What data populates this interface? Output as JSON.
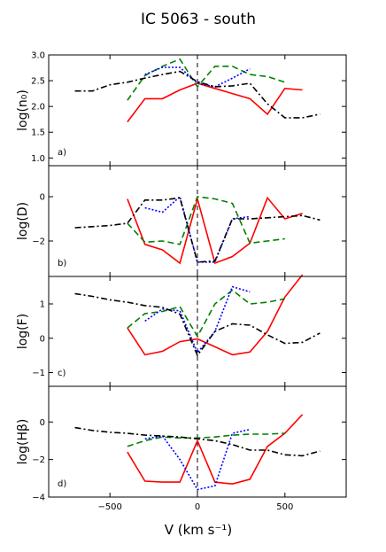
{
  "chart_data": {
    "type": "line",
    "title": "IC 5063 - south",
    "xlabel": "V (km s⁻¹)",
    "xlim": [
      -850,
      850
    ],
    "x_ticks": [
      -500,
      0,
      500
    ],
    "x_tick_labels": [
      "−500",
      "0",
      "500"
    ],
    "zero_line": {
      "x": 0,
      "style": "dashed"
    },
    "series_styles": [
      {
        "key": "red",
        "color": "#ff0000",
        "dash": "solid"
      },
      {
        "key": "green",
        "color": "#008000",
        "dash": "dashed"
      },
      {
        "key": "blue",
        "color": "#0000ff",
        "dash": "dotted"
      },
      {
        "key": "black",
        "color": "#000000",
        "dash": "dashdot"
      }
    ],
    "panels": [
      {
        "label": "a)",
        "ylabel": "log(n₀)",
        "ylim": [
          0.85,
          3.0
        ],
        "y_ticks": [
          1.0,
          1.5,
          2.0,
          2.5,
          3.0
        ],
        "y_tick_labels": [
          "1.0",
          "1.5",
          "2.0",
          "2.5",
          "3.0"
        ],
        "series": [
          {
            "color": "red",
            "x": [
              -400,
              -300,
              -200,
              -100,
              0,
              100,
              200,
              300,
              400,
              500,
              600
            ],
            "y": [
              1.7,
              2.15,
              2.15,
              2.32,
              2.45,
              2.35,
              2.25,
              2.15,
              1.85,
              2.35,
              2.32
            ]
          },
          {
            "color": "green",
            "x": [
              -400,
              -300,
              -200,
              -100,
              0,
              100,
              200,
              300,
              400,
              500
            ],
            "y": [
              2.12,
              2.6,
              2.78,
              2.92,
              2.38,
              2.78,
              2.78,
              2.62,
              2.58,
              2.47
            ]
          },
          {
            "color": "blue",
            "x": [
              -300,
              -200,
              -100,
              0,
              100,
              200,
              300
            ],
            "y": [
              2.62,
              2.76,
              2.76,
              2.45,
              2.38,
              2.55,
              2.73
            ]
          },
          {
            "color": "black",
            "x": [
              -700,
              -600,
              -500,
              -400,
              -300,
              -200,
              -100,
              0,
              100,
              200,
              300,
              400,
              500,
              600,
              700
            ],
            "y": [
              2.3,
              2.3,
              2.42,
              2.47,
              2.55,
              2.62,
              2.68,
              2.48,
              2.38,
              2.4,
              2.45,
              2.05,
              1.78,
              1.78,
              1.85
            ]
          }
        ]
      },
      {
        "label": "b)",
        "ylabel": "log(D)",
        "ylim": [
          -3.6,
          1.4
        ],
        "y_ticks": [
          -2,
          0
        ],
        "y_tick_labels": [
          "−2",
          "0"
        ],
        "series": [
          {
            "color": "red",
            "x": [
              -400,
              -300,
              -200,
              -100,
              0,
              100,
              200,
              300,
              400,
              500,
              600
            ],
            "y": [
              -0.1,
              -2.15,
              -2.4,
              -3.0,
              -0.1,
              -3.0,
              -2.7,
              -2.1,
              -0.05,
              -1.0,
              -0.75
            ]
          },
          {
            "color": "green",
            "x": [
              -400,
              -300,
              -200,
              -100,
              0,
              100,
              200,
              300,
              400,
              500
            ],
            "y": [
              -1.2,
              -2.05,
              -2.0,
              -2.15,
              0.0,
              -0.1,
              -0.3,
              -2.1,
              -2.0,
              -1.9
            ]
          },
          {
            "color": "blue",
            "x": [
              -300,
              -200,
              -100,
              0,
              100,
              200,
              300
            ],
            "y": [
              -0.5,
              -0.7,
              0.0,
              -2.95,
              -2.95,
              -1.0,
              -0.9
            ]
          },
          {
            "color": "black",
            "x": [
              -700,
              -600,
              -500,
              -400,
              -300,
              -200,
              -100,
              0,
              100,
              200,
              300,
              400,
              500,
              600,
              700
            ],
            "y": [
              -1.4,
              -1.35,
              -1.3,
              -1.2,
              -0.15,
              -0.15,
              -0.05,
              -2.95,
              -2.9,
              -1.0,
              -1.0,
              -0.95,
              -0.9,
              -0.85,
              -1.05
            ]
          }
        ]
      },
      {
        "label": "c)",
        "ylabel": "log(F)",
        "ylim": [
          -1.4,
          1.8
        ],
        "y_ticks": [
          -1,
          0,
          1
        ],
        "y_tick_labels": [
          "−1",
          "0",
          "1"
        ],
        "series": [
          {
            "color": "red",
            "x": [
              -400,
              -300,
              -200,
              -100,
              0,
              100,
              200,
              300,
              400,
              500,
              600
            ],
            "y": [
              0.3,
              -0.48,
              -0.38,
              -0.1,
              -0.02,
              -0.25,
              -0.48,
              -0.4,
              0.2,
              1.2,
              1.85
            ]
          },
          {
            "color": "green",
            "x": [
              -400,
              -300,
              -200,
              -100,
              0,
              100,
              200,
              300,
              400,
              500
            ],
            "y": [
              0.3,
              0.72,
              0.78,
              0.92,
              0.05,
              1.0,
              1.4,
              1.0,
              1.05,
              1.15
            ]
          },
          {
            "color": "blue",
            "x": [
              -300,
              -200,
              -100,
              0,
              100,
              200,
              300
            ],
            "y": [
              0.5,
              0.85,
              0.8,
              -0.42,
              0.2,
              1.5,
              1.35
            ]
          },
          {
            "color": "black",
            "x": [
              -700,
              -600,
              -500,
              -400,
              -300,
              -200,
              -100,
              0,
              100,
              200,
              300,
              400,
              500,
              600,
              700
            ],
            "y": [
              1.3,
              1.22,
              1.12,
              1.05,
              0.95,
              0.9,
              0.7,
              -0.5,
              0.2,
              0.42,
              0.38,
              0.1,
              -0.15,
              -0.12,
              0.15
            ]
          }
        ]
      },
      {
        "label": "d)",
        "ylabel": "log(Hβ)",
        "ylim": [
          -4.0,
          1.9
        ],
        "y_ticks": [
          -4,
          -2,
          0
        ],
        "y_tick_labels": [
          "−4",
          "−2",
          "0"
        ],
        "series": [
          {
            "color": "red",
            "x": [
              -400,
              -300,
              -200,
              -100,
              0,
              100,
              200,
              300,
              400,
              500,
              600
            ],
            "y": [
              -1.6,
              -3.15,
              -3.2,
              -3.2,
              -1.0,
              -3.2,
              -3.3,
              -3.05,
              -1.3,
              -0.6,
              0.4
            ]
          },
          {
            "color": "green",
            "x": [
              -400,
              -300,
              -200,
              -100,
              0,
              100,
              200,
              300,
              400,
              500
            ],
            "y": [
              -1.3,
              -1.0,
              -0.8,
              -0.85,
              -0.85,
              -0.8,
              -0.7,
              -0.65,
              -0.65,
              -0.6
            ]
          },
          {
            "color": "blue",
            "x": [
              -300,
              -200,
              -100,
              0,
              100,
              200,
              300
            ],
            "y": [
              -0.9,
              -0.75,
              -2.0,
              -3.6,
              -3.4,
              -0.6,
              -0.4
            ]
          },
          {
            "color": "black",
            "x": [
              -700,
              -600,
              -500,
              -400,
              -300,
              -200,
              -100,
              0,
              100,
              200,
              300,
              400,
              500,
              600,
              700
            ],
            "y": [
              -0.3,
              -0.45,
              -0.55,
              -0.6,
              -0.7,
              -0.75,
              -0.8,
              -0.9,
              -1.0,
              -1.2,
              -1.5,
              -1.5,
              -1.75,
              -1.8,
              -1.55
            ]
          }
        ]
      }
    ]
  }
}
